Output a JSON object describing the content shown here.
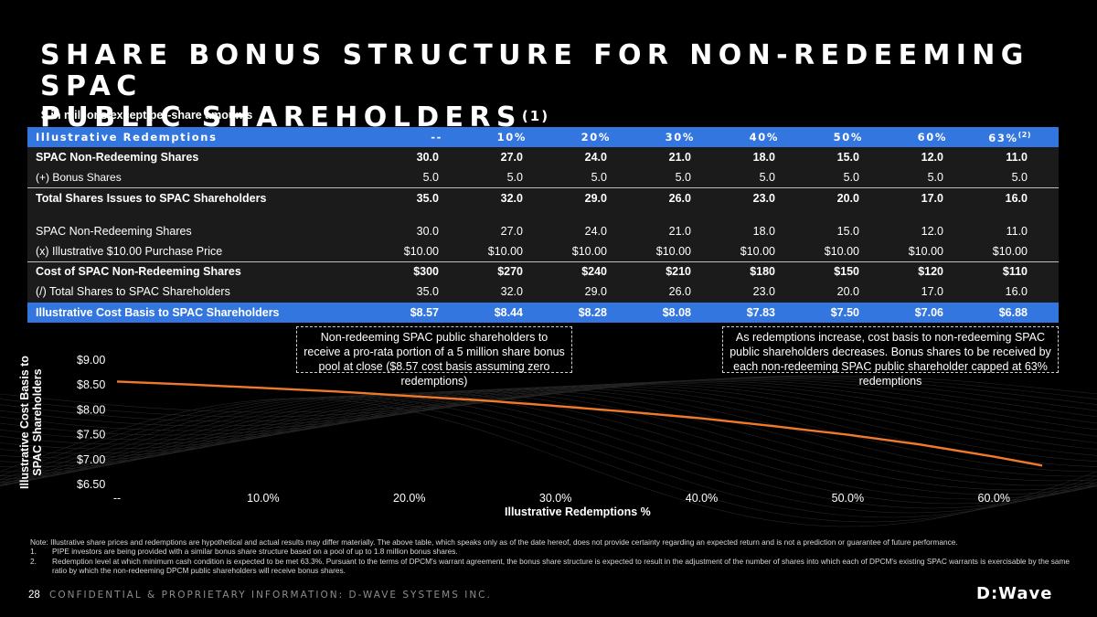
{
  "title": {
    "line1": "SHARE BONUS STRUCTURE FOR NON-REDEEMING SPAC",
    "line2": "PUBLIC SHAREHOLDERS",
    "footnote_ref": "(1)"
  },
  "units_note": "$ in millions except per-share amounts",
  "table": {
    "header": {
      "label": "Illustrative Redemptions",
      "columns": [
        "--",
        "10%",
        "20%",
        "30%",
        "40%",
        "50%",
        "60%",
        "63%"
      ],
      "last_footnote": "(2)"
    },
    "rows": [
      {
        "label": "SPAC Non-Redeeming Shares",
        "values": [
          "30.0",
          "27.0",
          "24.0",
          "21.0",
          "18.0",
          "15.0",
          "12.0",
          "11.0"
        ]
      },
      {
        "label": "(+) Bonus Shares",
        "values": [
          "5.0",
          "5.0",
          "5.0",
          "5.0",
          "5.0",
          "5.0",
          "5.0",
          "5.0"
        ]
      },
      {
        "label": "Total Shares Issues to SPAC Shareholders",
        "values": [
          "35.0",
          "32.0",
          "29.0",
          "26.0",
          "23.0",
          "20.0",
          "17.0",
          "16.0"
        ]
      },
      {
        "label": "SPAC Non-Redeeming Shares",
        "values": [
          "30.0",
          "27.0",
          "24.0",
          "21.0",
          "18.0",
          "15.0",
          "12.0",
          "11.0"
        ]
      },
      {
        "label": "(x) Illustrative $10.00 Purchase Price",
        "values": [
          "$10.00",
          "$10.00",
          "$10.00",
          "$10.00",
          "$10.00",
          "$10.00",
          "$10.00",
          "$10.00"
        ]
      },
      {
        "label": "Cost of SPAC Non-Redeeming Shares",
        "values": [
          "$300",
          "$270",
          "$240",
          "$210",
          "$180",
          "$150",
          "$120",
          "$110"
        ]
      },
      {
        "label": "(/) Total Shares to SPAC Shareholders",
        "values": [
          "35.0",
          "32.0",
          "29.0",
          "26.0",
          "23.0",
          "20.0",
          "17.0",
          "16.0"
        ]
      },
      {
        "label": "Illustrative Cost Basis to SPAC Shareholders",
        "values": [
          "$8.57",
          "$8.44",
          "$8.28",
          "$8.08",
          "$7.83",
          "$7.50",
          "$7.06",
          "$6.88"
        ]
      }
    ]
  },
  "callouts": {
    "left": "Non-redeeming SPAC public shareholders to receive a pro-rata portion of a 5 million share bonus pool at close ($8.57 cost basis assuming zero redemptions)",
    "right": "As redemptions increase, cost basis to non-redeeming SPAC public shareholders decreases.  Bonus shares to be received by each non-redeeming SPAC public shareholder capped at 63% redemptions"
  },
  "chart_data": {
    "type": "line",
    "title": "",
    "xlabel": "Illustrative Redemptions %",
    "ylabel": "Illustrative Cost Basis to SPAC Shareholders",
    "xlim": [
      0,
      63.3
    ],
    "ylim": [
      6.5,
      9.0
    ],
    "x_ticks": [
      0,
      10,
      20,
      30,
      40,
      50,
      60
    ],
    "x_tick_labels": [
      "--",
      "10.0%",
      "20.0%",
      "30.0%",
      "40.0%",
      "50.0%",
      "60.0%"
    ],
    "y_ticks": [
      6.5,
      7.0,
      7.5,
      8.0,
      8.5,
      9.0
    ],
    "y_tick_labels": [
      "$6.50",
      "$7.00",
      "$7.50",
      "$8.00",
      "$8.50",
      "$9.00"
    ],
    "series": [
      {
        "name": "Illustrative Cost Basis",
        "color": "#f07a2a",
        "x": [
          0,
          5,
          10,
          15,
          20,
          25,
          30,
          35,
          40,
          45,
          50,
          55,
          60,
          63.3
        ],
        "y": [
          8.57,
          8.51,
          8.44,
          8.37,
          8.28,
          8.19,
          8.08,
          7.96,
          7.83,
          7.67,
          7.5,
          7.3,
          7.06,
          6.88
        ]
      }
    ]
  },
  "notes": {
    "intro": "Note: Illustrative share prices and redemptions are hypothetical and actual results may differ materially. The above table, which speaks only as of the date hereof, does not provide certainty regarding an expected return and is not a prediction or guarantee of future performance.",
    "items": [
      {
        "num": "1.",
        "text": "PIPE investors are being provided with a similar bonus share structure based on a pool of up to 1.8 million bonus shares."
      },
      {
        "num": "2.",
        "text": "Redemption level at which minimum cash condition is expected to be met 63.3%. Pursuant to the terms of DPCM's warrant agreement, the bonus share structure is expected to result in the adjustment of the number of shares into which each of DPCM's existing SPAC warrants is exercisable by the same ratio by which the non-redeeming DPCM public shareholders will receive bonus shares."
      }
    ]
  },
  "footer": {
    "page_number": "28",
    "confidential": "CONFIDENTIAL & PROPRIETARY INFORMATION: D-WAVE SYSTEMS INC.",
    "logo_text": "D:Wave"
  }
}
